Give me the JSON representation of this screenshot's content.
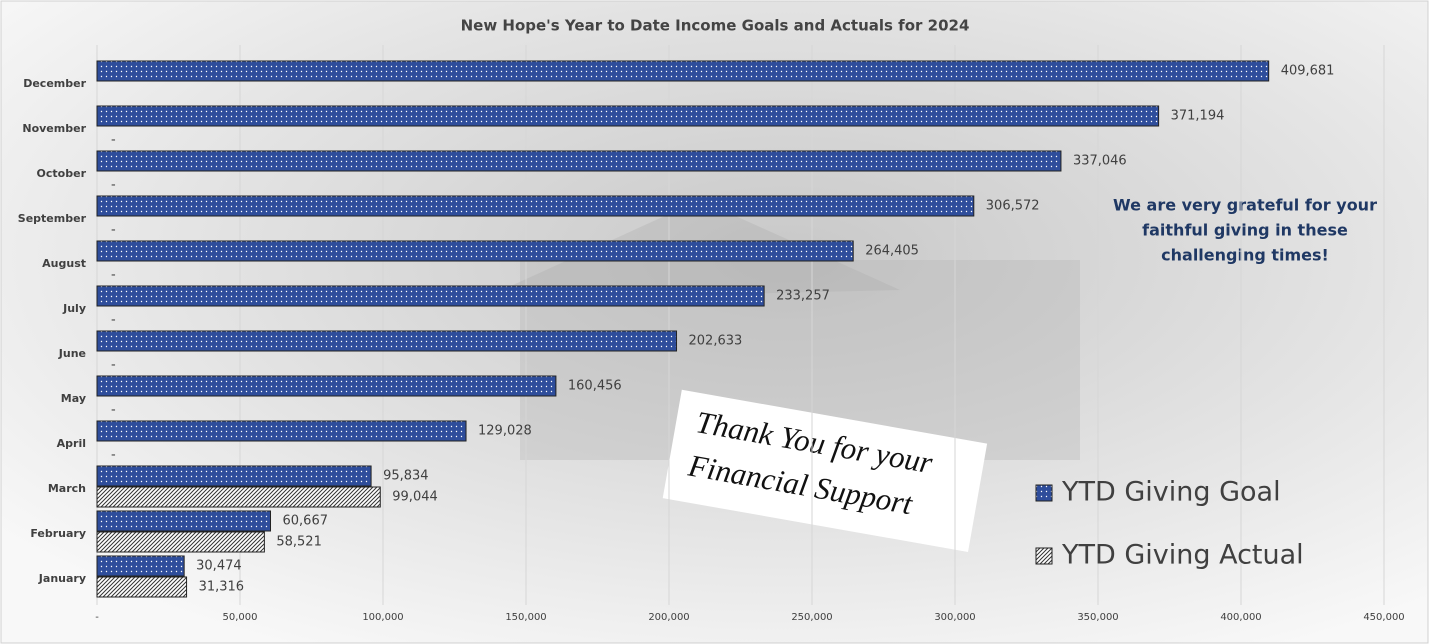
{
  "chart_data": {
    "type": "bar",
    "orientation": "horizontal",
    "title": "New Hope's Year to Date Income Goals and Actuals for 2024",
    "categories": [
      "January",
      "February",
      "March",
      "April",
      "May",
      "June",
      "July",
      "August",
      "September",
      "October",
      "November",
      "December"
    ],
    "series": [
      {
        "name": "YTD Giving Goal",
        "color": "#2e4d9b",
        "values": [
          30474,
          60667,
          95834,
          129028,
          160456,
          202633,
          233257,
          264405,
          306572,
          337046,
          371194,
          409681
        ],
        "value_labels": [
          "30,474",
          "60,667",
          "95,834",
          "129,028",
          "160,456",
          "202,633",
          "233,257",
          "264,405",
          "306,572",
          "337,046",
          "371,194",
          "409,681"
        ]
      },
      {
        "name": "YTD Giving Actual",
        "color": "#333333",
        "values": [
          31316,
          58521,
          99044,
          0,
          0,
          0,
          0,
          0,
          0,
          0,
          0,
          null
        ],
        "value_labels": [
          "31,316",
          "58,521",
          "99,044",
          "-",
          "-",
          "-",
          "-",
          "-",
          "-",
          "-",
          "-",
          null
        ]
      }
    ],
    "xlim": [
      0,
      450000
    ],
    "xticks": [
      {
        "value": 0,
        "label": "-"
      },
      {
        "value": 50000,
        "label": "50,000"
      },
      {
        "value": 100000,
        "label": "100,000"
      },
      {
        "value": 150000,
        "label": "150,000"
      },
      {
        "value": 200000,
        "label": "200,000"
      },
      {
        "value": 250000,
        "label": "250,000"
      },
      {
        "value": 300000,
        "label": "300,000"
      },
      {
        "value": 350000,
        "label": "350,000"
      },
      {
        "value": 400000,
        "label": "400,000"
      },
      {
        "value": 450000,
        "label": "450,000"
      }
    ],
    "grid": true,
    "legend": "right",
    "annotations": [
      [
        "We are very grateful for your",
        "faithful giving in these",
        "challenging times!"
      ],
      [
        "Thank You for your",
        "Financial Support"
      ]
    ]
  }
}
